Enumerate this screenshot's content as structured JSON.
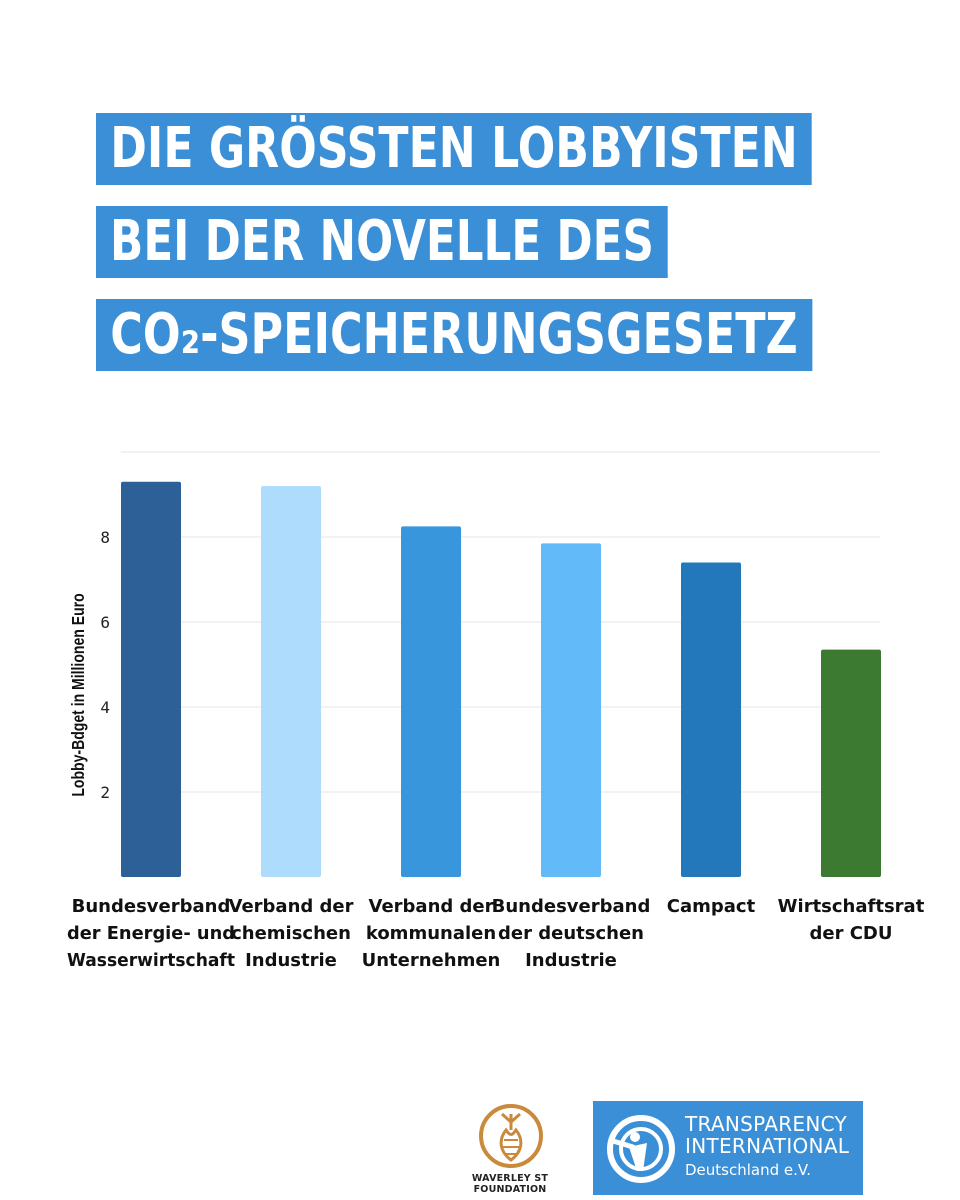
{
  "title_lines": [
    "DIE GRÖSSTEN LOBBYISTEN",
    "BEI DER NOVELLE DES",
    "CO₂-SPEICHERUNGSGESETZ"
  ],
  "colors": {
    "title_bg": "#3a8fd6",
    "bars": [
      "#2e6098",
      "#aedcfc",
      "#3896dc",
      "#62baf8",
      "#2278bb",
      "#3b7a30"
    ]
  },
  "chart_data": {
    "type": "bar",
    "categories": [
      "Bundesverband der Energie- und Wasserwirtschaft",
      "Verband der chemischen Industrie",
      "Verband der kommunalen Unternehmen",
      "Bundesverband der deutschen Industrie",
      "Campact",
      "Wirtschaftsrat der CDU"
    ],
    "category_lines": [
      [
        "Bundesverband",
        "der Energie- und",
        "Wasserwirtschaft"
      ],
      [
        "Verband der",
        "chemischen",
        "Industrie"
      ],
      [
        "Verband der",
        "kommunalen",
        "Unternehmen"
      ],
      [
        "Bundesverband",
        "der deutschen",
        "Industrie"
      ],
      [
        "Campact"
      ],
      [
        "Wirtschaftsrat",
        "der CDU"
      ]
    ],
    "values": [
      9.3,
      9.2,
      8.25,
      7.85,
      7.4,
      5.35
    ],
    "ylabel": "Lobby-Bdget in Millionen Euro",
    "yticks": [
      2,
      4,
      6,
      8
    ],
    "ylim": [
      0,
      10
    ],
    "grid": true
  },
  "logos": {
    "waverley": "WAVERLEY ST FOUNDATION",
    "transparency_lines": [
      "TRANSPARENCY",
      "INTERNATIONAL",
      "Deutschland e.V."
    ]
  }
}
